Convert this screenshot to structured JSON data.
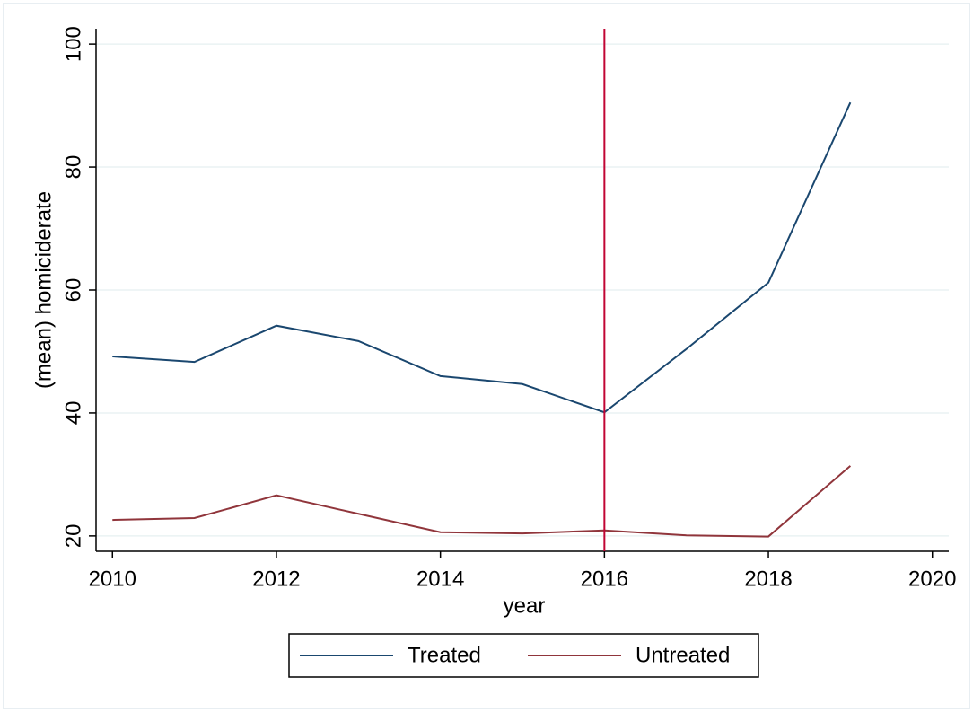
{
  "chart_data": {
    "type": "line",
    "x": [
      2010,
      2011,
      2012,
      2013,
      2014,
      2015,
      2016,
      2017,
      2018,
      2019
    ],
    "series": [
      {
        "name": "Treated",
        "color": "#1a476f",
        "values": [
          49.2,
          48.3,
          54.2,
          51.7,
          46.0,
          44.7,
          40.1,
          50.4,
          61.2,
          90.5
        ]
      },
      {
        "name": "Untreated",
        "color": "#90353b",
        "values": [
          22.6,
          22.9,
          26.6,
          23.6,
          20.6,
          20.4,
          20.9,
          20.1,
          19.9,
          31.4
        ]
      }
    ],
    "xlabel": "year",
    "ylabel": "(mean) homiciderate",
    "xlim": [
      2009.8,
      2020.2
    ],
    "ylim": [
      17.5,
      102.5
    ],
    "xticks": [
      2010,
      2012,
      2014,
      2016,
      2018,
      2020
    ],
    "yticks": [
      20,
      40,
      60,
      80,
      100
    ],
    "vline": {
      "x": 2016,
      "color": "#c10534"
    },
    "grid": true,
    "legend": "bottom"
  }
}
